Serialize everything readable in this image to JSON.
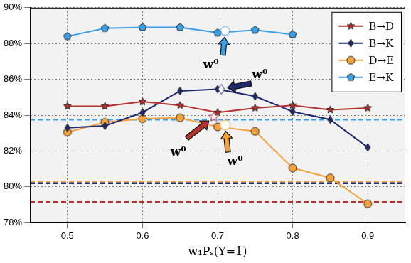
{
  "chart_data": {
    "type": "line",
    "x_label": "w₁Pₛ(Y=1)",
    "x": [
      0.5,
      0.55,
      0.6,
      0.65,
      0.7,
      0.75,
      0.8,
      0.85,
      0.9
    ],
    "xlim": [
      0.45,
      0.95
    ],
    "xticks": [
      0.5,
      0.6,
      0.7,
      0.8,
      0.9
    ],
    "ylim": [
      78,
      90
    ],
    "yticks": [
      {
        "value": 78,
        "label": "78%"
      },
      {
        "value": 80,
        "label": "80%"
      },
      {
        "value": 82,
        "label": "82%"
      },
      {
        "value": 84,
        "label": "84%"
      },
      {
        "value": 86,
        "label": "86%"
      },
      {
        "value": 88,
        "label": "88%"
      },
      {
        "value": 90,
        "label": "90%"
      }
    ],
    "grid": true,
    "legend": "upper right",
    "series": [
      {
        "name": "B→D",
        "color": "#b5322e",
        "marker": "star",
        "values": [
          84.5,
          84.5,
          84.75,
          84.55,
          84.15,
          84.4,
          84.55,
          84.3,
          84.4
        ],
        "baseline": 79.15,
        "w0": {
          "x": 0.695,
          "y": 83.9,
          "label": "w⁰"
        }
      },
      {
        "name": "B→K",
        "color": "#1f2a6e",
        "marker": "diamond",
        "values": [
          83.3,
          83.4,
          84.15,
          85.35,
          85.45,
          85.05,
          84.2,
          83.75,
          82.2
        ],
        "baseline": 80.2,
        "w0": {
          "x": 0.705,
          "y": 85.45,
          "label": "w⁰"
        }
      },
      {
        "name": "D→E",
        "color": "#f5a23c",
        "marker": "circle",
        "values": [
          83.05,
          83.6,
          83.8,
          83.85,
          83.35,
          83.1,
          81.05,
          80.5,
          79.05
        ],
        "baseline": 80.3,
        "w0": {
          "x": 0.71,
          "y": 83.45,
          "label": "w⁰"
        }
      },
      {
        "name": "E→K",
        "color": "#3a9fe6",
        "marker": "pentagon",
        "values": [
          88.4,
          88.85,
          88.9,
          88.9,
          88.6,
          88.75,
          88.5,
          null,
          null
        ],
        "baseline": 83.75,
        "w0": {
          "x": 0.71,
          "y": 88.7,
          "label": "w⁰"
        }
      }
    ]
  }
}
